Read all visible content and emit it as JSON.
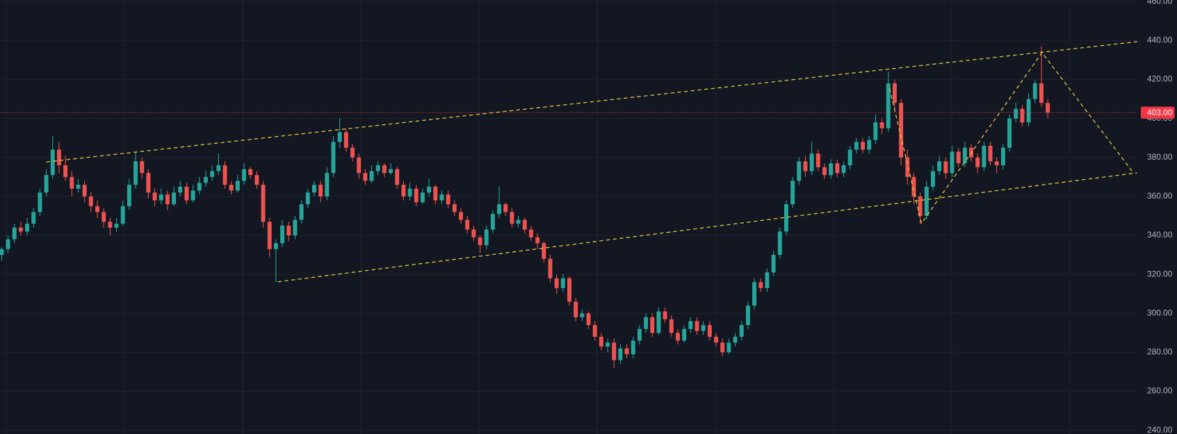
{
  "chart_data": {
    "type": "candlestick",
    "up_color": "#26a69a",
    "down_color": "#ef5350",
    "grid": true,
    "xlim": [
      -0.235,
      178
    ],
    "ylim": [
      238.1,
      460.8
    ],
    "yticks": [
      {
        "value": 240,
        "label": "240.00"
      },
      {
        "value": 260,
        "label": "260.00"
      },
      {
        "value": 280,
        "label": "280.00"
      },
      {
        "value": 300,
        "label": "300.00"
      },
      {
        "value": 320,
        "label": "320.00"
      },
      {
        "value": 340,
        "label": "340.00"
      },
      {
        "value": 360,
        "label": "360.00"
      },
      {
        "value": 380,
        "label": "380.00"
      },
      {
        "value": 400,
        "label": "400.00"
      },
      {
        "value": 420,
        "label": "420.00"
      },
      {
        "value": 440,
        "label": "440.00"
      },
      {
        "value": 460,
        "label": "460.00"
      }
    ],
    "last_price": {
      "value": 403,
      "label": "403.00",
      "color": "#f23645"
    },
    "drawing_color": "#e3c93b",
    "drawings": [
      {
        "x": [
          7,
          178
        ],
        "y": [
          377.7,
          439.4
        ]
      },
      {
        "x": [
          43.3,
          178
        ],
        "y": [
          316.2,
          372.1
        ]
      },
      {
        "x": [
          139.2,
          144.2,
          163.1,
          177.2
        ],
        "y": [
          415.4,
          346.2,
          433.8,
          373.1
        ]
      }
    ],
    "candles": [
      [
        330,
        334,
        327,
        333
      ],
      [
        333,
        340,
        331,
        338
      ],
      [
        338,
        346,
        336,
        344
      ],
      [
        344,
        347,
        340,
        342
      ],
      [
        342,
        349,
        340,
        346
      ],
      [
        346,
        354,
        344,
        352
      ],
      [
        352,
        364,
        350,
        362
      ],
      [
        362,
        374,
        360,
        371
      ],
      [
        371,
        391,
        369,
        384
      ],
      [
        384,
        388,
        372,
        376
      ],
      [
        376,
        381,
        368,
        370
      ],
      [
        370,
        373,
        360,
        364
      ],
      [
        364,
        369,
        362,
        366
      ],
      [
        366,
        368,
        357,
        360
      ],
      [
        360,
        362,
        352,
        355
      ],
      [
        355,
        358,
        349,
        352
      ],
      [
        352,
        354,
        344,
        347
      ],
      [
        347,
        349,
        340,
        344
      ],
      [
        344,
        349,
        342,
        346
      ],
      [
        346,
        358,
        345,
        355
      ],
      [
        355,
        369,
        353,
        366
      ],
      [
        366,
        383,
        364,
        378
      ],
      [
        378,
        380,
        369,
        372
      ],
      [
        372,
        374,
        359,
        362
      ],
      [
        362,
        364,
        355,
        358
      ],
      [
        358,
        364,
        356,
        361
      ],
      [
        361,
        363,
        353,
        356
      ],
      [
        356,
        365,
        355,
        362
      ],
      [
        362,
        368,
        360,
        365
      ],
      [
        365,
        367,
        356,
        358
      ],
      [
        358,
        366,
        357,
        363
      ],
      [
        363,
        370,
        361,
        367
      ],
      [
        367,
        373,
        365,
        370
      ],
      [
        370,
        376,
        368,
        373
      ],
      [
        373,
        382,
        371,
        376
      ],
      [
        376,
        378,
        364,
        366
      ],
      [
        366,
        368,
        361,
        363
      ],
      [
        363,
        371,
        362,
        368
      ],
      [
        368,
        377,
        366,
        374
      ],
      [
        374,
        375,
        369,
        371
      ],
      [
        371,
        373,
        364,
        366
      ],
      [
        366,
        368,
        344,
        347
      ],
      [
        347,
        349,
        329,
        333
      ],
      [
        333,
        338,
        316,
        336
      ],
      [
        336,
        348,
        334,
        345
      ],
      [
        345,
        347,
        337,
        340
      ],
      [
        340,
        350,
        338,
        348
      ],
      [
        348,
        358,
        346,
        356
      ],
      [
        356,
        364,
        354,
        362
      ],
      [
        362,
        368,
        360,
        366
      ],
      [
        366,
        368,
        357,
        360
      ],
      [
        360,
        375,
        358,
        372
      ],
      [
        372,
        391,
        370,
        388
      ],
      [
        388,
        400,
        385,
        393
      ],
      [
        393,
        395,
        383,
        385
      ],
      [
        385,
        387,
        378,
        380
      ],
      [
        380,
        382,
        369,
        372
      ],
      [
        372,
        374,
        366,
        368
      ],
      [
        368,
        376,
        367,
        373
      ],
      [
        373,
        378,
        371,
        376
      ],
      [
        376,
        377,
        370,
        372
      ],
      [
        372,
        377,
        371,
        374
      ],
      [
        374,
        375,
        364,
        366
      ],
      [
        366,
        368,
        358,
        360
      ],
      [
        360,
        367,
        358,
        364
      ],
      [
        364,
        366,
        355,
        357
      ],
      [
        357,
        364,
        356,
        362
      ],
      [
        362,
        369,
        360,
        365
      ],
      [
        365,
        366,
        356,
        358
      ],
      [
        358,
        363,
        356,
        361
      ],
      [
        361,
        363,
        354,
        356
      ],
      [
        356,
        358,
        350,
        352
      ],
      [
        352,
        354,
        346,
        348
      ],
      [
        348,
        350,
        341,
        343
      ],
      [
        343,
        345,
        337,
        339
      ],
      [
        339,
        340,
        331,
        335
      ],
      [
        335,
        345,
        333,
        343
      ],
      [
        343,
        353,
        341,
        351
      ],
      [
        351,
        365,
        349,
        356
      ],
      [
        356,
        357,
        350,
        352
      ],
      [
        352,
        354,
        344,
        346
      ],
      [
        346,
        350,
        344,
        348
      ],
      [
        348,
        349,
        341,
        343
      ],
      [
        343,
        345,
        337,
        339
      ],
      [
        339,
        341,
        333,
        336
      ],
      [
        336,
        337,
        326,
        328
      ],
      [
        328,
        330,
        316,
        318
      ],
      [
        318,
        320,
        310,
        313
      ],
      [
        313,
        320,
        311,
        318
      ],
      [
        318,
        319,
        304,
        306
      ],
      [
        306,
        308,
        296,
        298
      ],
      [
        298,
        302,
        296,
        300
      ],
      [
        300,
        301,
        292,
        294
      ],
      [
        294,
        296,
        286,
        288
      ],
      [
        288,
        290,
        281,
        283
      ],
      [
        283,
        287,
        280,
        285
      ],
      [
        285,
        287,
        272,
        276
      ],
      [
        276,
        284,
        274,
        282
      ],
      [
        282,
        284,
        277,
        279
      ],
      [
        279,
        288,
        277,
        286
      ],
      [
        286,
        294,
        284,
        292
      ],
      [
        292,
        300,
        290,
        298
      ],
      [
        298,
        300,
        288,
        290
      ],
      [
        290,
        303,
        289,
        301
      ],
      [
        301,
        303,
        295,
        297
      ],
      [
        297,
        299,
        288,
        290
      ],
      [
        290,
        292,
        284,
        286
      ],
      [
        286,
        294,
        285,
        292
      ],
      [
        292,
        298,
        290,
        296
      ],
      [
        296,
        298,
        289,
        291
      ],
      [
        291,
        296,
        289,
        294
      ],
      [
        294,
        296,
        286,
        288
      ],
      [
        288,
        290,
        283,
        285
      ],
      [
        285,
        287,
        278,
        280
      ],
      [
        280,
        287,
        279,
        285
      ],
      [
        285,
        290,
        283,
        288
      ],
      [
        288,
        296,
        286,
        294
      ],
      [
        294,
        306,
        292,
        304
      ],
      [
        304,
        318,
        302,
        316
      ],
      [
        316,
        318,
        311,
        313
      ],
      [
        313,
        323,
        311,
        321
      ],
      [
        321,
        332,
        319,
        330
      ],
      [
        330,
        344,
        328,
        342
      ],
      [
        342,
        358,
        340,
        356
      ],
      [
        356,
        370,
        354,
        368
      ],
      [
        368,
        380,
        366,
        378
      ],
      [
        378,
        381,
        370,
        373
      ],
      [
        373,
        388,
        371,
        382
      ],
      [
        382,
        384,
        373,
        375
      ],
      [
        375,
        377,
        369,
        371
      ],
      [
        371,
        379,
        369,
        377
      ],
      [
        377,
        379,
        370,
        372
      ],
      [
        372,
        378,
        370,
        376
      ],
      [
        376,
        386,
        374,
        384
      ],
      [
        384,
        390,
        382,
        388
      ],
      [
        388,
        390,
        382,
        384
      ],
      [
        384,
        391,
        382,
        389
      ],
      [
        389,
        402,
        387,
        398
      ],
      [
        398,
        400,
        392,
        395
      ],
      [
        395,
        424,
        393,
        418
      ],
      [
        418,
        420,
        404,
        408
      ],
      [
        408,
        410,
        376,
        380
      ],
      [
        380,
        384,
        366,
        370
      ],
      [
        370,
        372,
        356,
        360
      ],
      [
        360,
        362,
        346,
        350
      ],
      [
        350,
        368,
        348,
        365
      ],
      [
        365,
        376,
        363,
        373
      ],
      [
        373,
        381,
        371,
        378
      ],
      [
        378,
        380,
        369,
        372
      ],
      [
        372,
        386,
        370,
        383
      ],
      [
        383,
        385,
        375,
        377
      ],
      [
        377,
        388,
        375,
        385
      ],
      [
        385,
        387,
        378,
        380
      ],
      [
        380,
        382,
        372,
        375
      ],
      [
        375,
        388,
        373,
        386
      ],
      [
        386,
        388,
        376,
        378
      ],
      [
        378,
        380,
        372,
        376
      ],
      [
        376,
        387,
        374,
        385
      ],
      [
        385,
        402,
        383,
        400
      ],
      [
        400,
        408,
        398,
        405
      ],
      [
        405,
        407,
        396,
        398
      ],
      [
        398,
        413,
        396,
        410
      ],
      [
        410,
        420,
        408,
        418
      ],
      [
        418,
        437,
        406,
        408
      ],
      [
        408,
        410,
        400,
        403
      ]
    ]
  }
}
